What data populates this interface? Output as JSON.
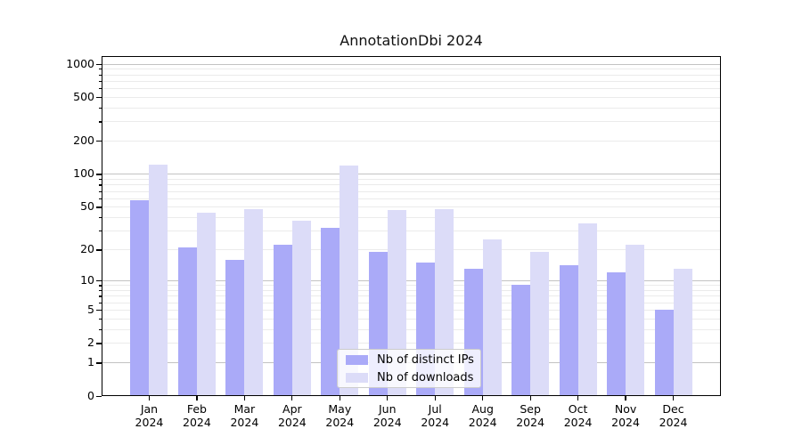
{
  "title": "AnnotationDbi 2024",
  "colors": {
    "ips_bar": "#aaaaf8",
    "downloads_bar": "#dcdcf8",
    "major_grid": "#c3c3c3",
    "minor_grid": "#ebebeb",
    "axis": "#000000"
  },
  "legend": {
    "items": [
      {
        "label": "Nb of distinct IPs",
        "color_key": "ips_bar"
      },
      {
        "label": "Nb of downloads",
        "color_key": "downloads_bar"
      }
    ]
  },
  "chart_data": {
    "type": "bar",
    "title": "AnnotationDbi 2024",
    "xlabel": "",
    "ylabel": "",
    "scale": "log10(value+1)",
    "grid": true,
    "legend_position": "lower center",
    "categories": [
      "Jan 2024",
      "Feb 2024",
      "Mar 2024",
      "Apr 2024",
      "May 2024",
      "Jun 2024",
      "Jul 2024",
      "Aug 2024",
      "Sep 2024",
      "Oct 2024",
      "Nov 2024",
      "Dec 2024"
    ],
    "x_tick_months": [
      "Jan",
      "Feb",
      "Mar",
      "Apr",
      "May",
      "Jun",
      "Jul",
      "Aug",
      "Sep",
      "Oct",
      "Nov",
      "Dec"
    ],
    "x_tick_year": "2024",
    "series": [
      {
        "name": "Nb of distinct IPs",
        "values": [
          57,
          21,
          16,
          22,
          32,
          19,
          15,
          13,
          9,
          14,
          12,
          5
        ]
      },
      {
        "name": "Nb of downloads",
        "values": [
          122,
          44,
          48,
          37,
          120,
          47,
          48,
          25,
          19,
          35,
          22,
          13
        ]
      }
    ],
    "y_ticks": [
      0,
      1,
      2,
      5,
      10,
      20,
      50,
      100,
      200,
      500,
      1000
    ],
    "major_gridline_values": [
      1,
      10,
      100,
      1000
    ],
    "ylim": [
      0,
      1170
    ]
  }
}
